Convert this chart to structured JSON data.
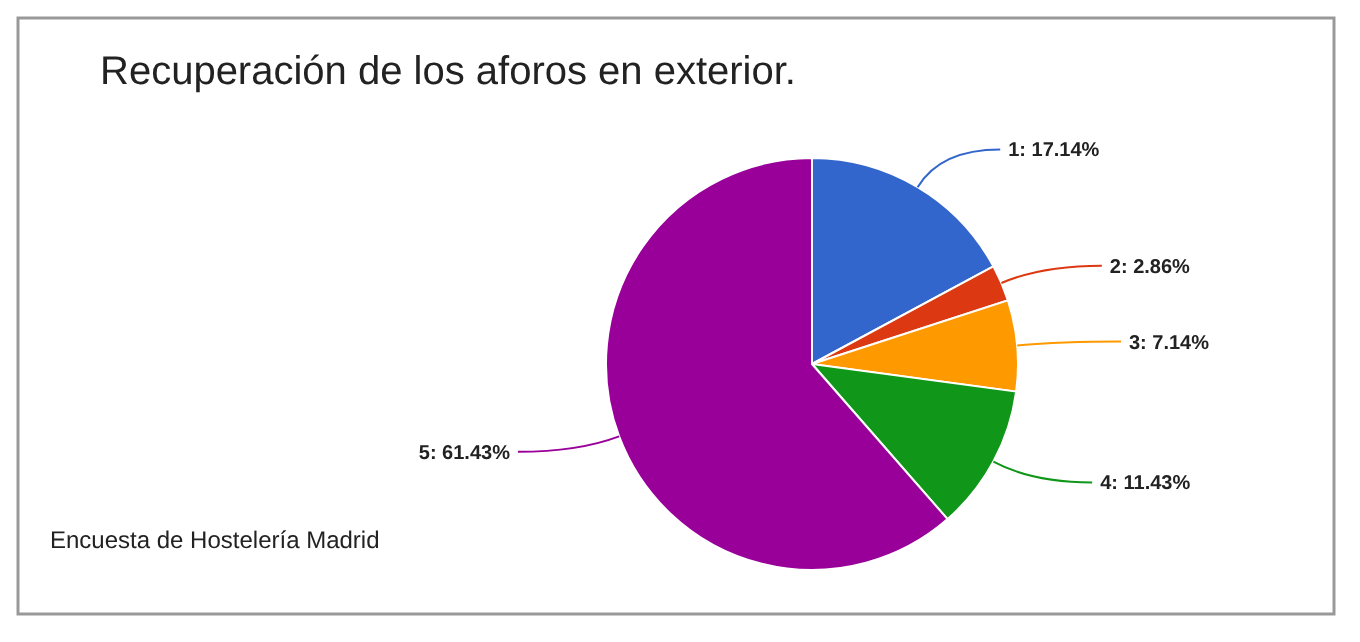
{
  "chart_data": {
    "type": "pie",
    "title": "Recuperación de los aforos en exterior.",
    "categories": [
      "1",
      "2",
      "3",
      "4",
      "5"
    ],
    "values": [
      17.14,
      2.86,
      7.14,
      11.43,
      61.43
    ],
    "colors": [
      "#3366cc",
      "#dc3912",
      "#ff9900",
      "#109618",
      "#990099"
    ],
    "value_labels": [
      ": 17.14%",
      ": 2.86%",
      ": 7.14%",
      ": 11.43%",
      ": 61.43%"
    ],
    "annotations": [
      "Encuesta de Hostelería Madrid"
    ]
  }
}
